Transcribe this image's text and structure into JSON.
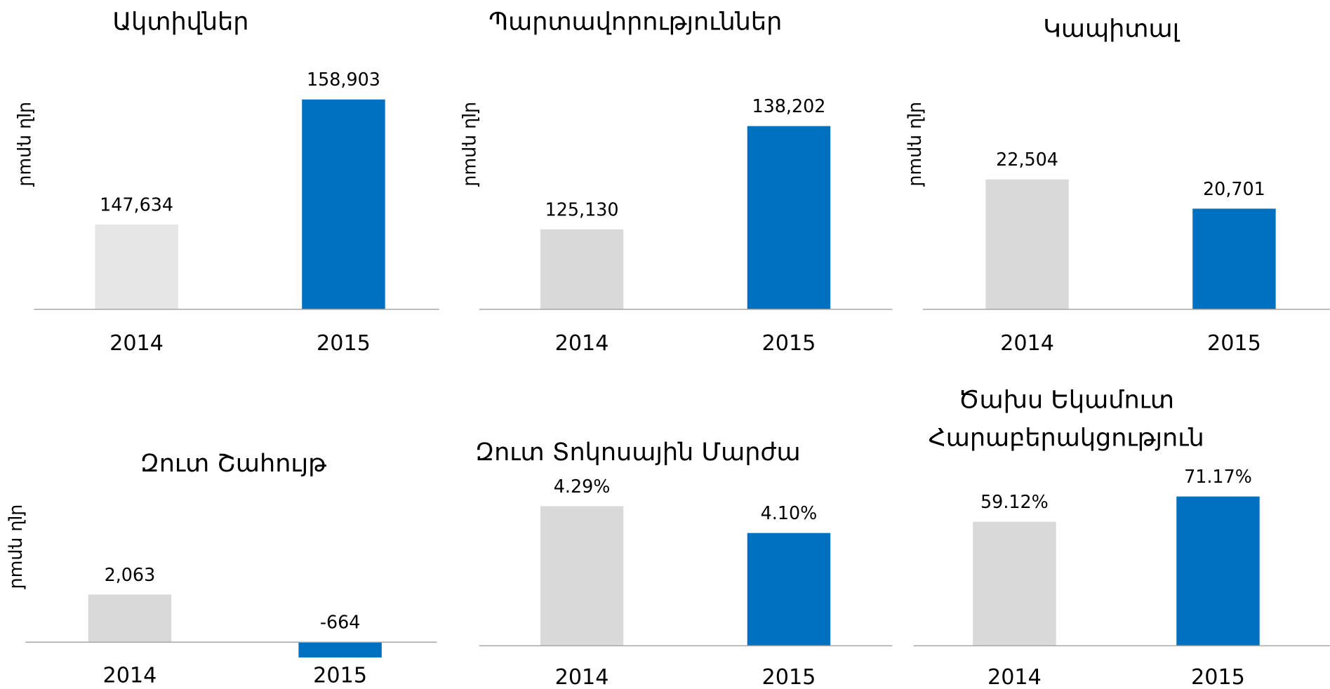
{
  "chart_data": [
    {
      "type": "bar",
      "title": [
        "Ակտիվներ"
      ],
      "y_label": "մլն դրամ",
      "categories": [
        "2014",
        "2015"
      ],
      "values": [
        147634,
        158903
      ],
      "value_labels": [
        "147,634",
        "158,903"
      ],
      "colors": [
        "#e6e6e6",
        "#0070c0"
      ],
      "ylim": [
        140000,
        160000
      ]
    },
    {
      "type": "bar",
      "title": [
        "Պարտավորություններ"
      ],
      "y_label": "մլն դրամ",
      "categories": [
        "2014",
        "2015"
      ],
      "values": [
        125130,
        138202
      ],
      "value_labels": [
        "125,130",
        "138,202"
      ],
      "colors": [
        "#d9d9d9",
        "#0070c0"
      ],
      "ylim": [
        115000,
        140000
      ]
    },
    {
      "type": "bar",
      "title": [
        "Կապիտալ"
      ],
      "y_label": "մլն դրամ",
      "categories": [
        "2014",
        "2015"
      ],
      "values": [
        22504,
        20701
      ],
      "value_labels": [
        "22,504",
        "20,701"
      ],
      "colors": [
        "#d9d9d9",
        "#0070c0"
      ],
      "ylim": [
        14500,
        24000
      ]
    },
    {
      "type": "bar",
      "title": [
        "Զուտ Շահույթ"
      ],
      "y_label": "մլն դրամ",
      "categories": [
        "2014",
        "2015"
      ],
      "values": [
        2063,
        -664
      ],
      "value_labels": [
        "2,063",
        "-664"
      ],
      "colors": [
        "#d9d9d9",
        "#0070c0"
      ],
      "ylim": [
        -1000,
        3000
      ]
    },
    {
      "type": "bar",
      "title": [
        "Զուտ Տոկոսային Մարժա"
      ],
      "categories": [
        "2014",
        "2015"
      ],
      "values": [
        4.29,
        4.1
      ],
      "value_labels": [
        "4.29%",
        "4.10%"
      ],
      "colors": [
        "#d9d9d9",
        "#0070c0"
      ],
      "ylim": [
        3.3,
        4.4
      ]
    },
    {
      "type": "bar",
      "title": [
        "Ծախս Եկամուտ",
        "Հարաբերակցություն"
      ],
      "categories": [
        "2014",
        "2015"
      ],
      "values": [
        59.12,
        71.17
      ],
      "value_labels": [
        "59.12%",
        "71.17%"
      ],
      "colors": [
        "#d9d9d9",
        "#0070c0"
      ],
      "ylim": [
        0,
        80
      ]
    }
  ]
}
